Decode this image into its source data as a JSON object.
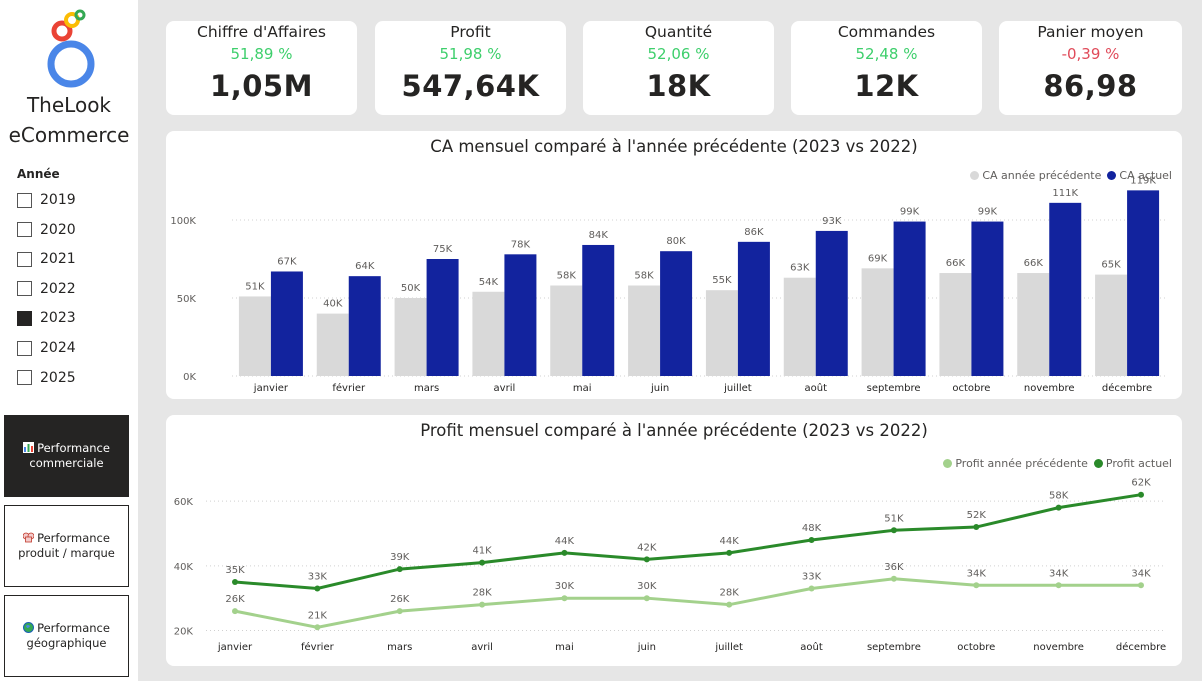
{
  "sidebar": {
    "brand_line1": "TheLook",
    "brand_line2": "eCommerce",
    "year_filter_title": "Année",
    "years": [
      {
        "label": "2019",
        "checked": false
      },
      {
        "label": "2020",
        "checked": false
      },
      {
        "label": "2021",
        "checked": false
      },
      {
        "label": "2022",
        "checked": false
      },
      {
        "label": "2023",
        "checked": true
      },
      {
        "label": "2024",
        "checked": false
      },
      {
        "label": "2025",
        "checked": false
      }
    ],
    "nav": [
      {
        "line1": "Performance",
        "line2": "commerciale",
        "icon": "bar-chart-icon",
        "active": true
      },
      {
        "line1": "Performance",
        "line2": "produit / marque",
        "icon": "chef-hat-icon",
        "active": false
      },
      {
        "line1": "Performance",
        "line2": "géographique",
        "icon": "globe-icon",
        "active": false
      }
    ]
  },
  "kpis": [
    {
      "title": "Chiffre d'Affaires",
      "delta": "51,89 %",
      "value": "1,05M",
      "trend": "up"
    },
    {
      "title": "Profit",
      "delta": "51,98 %",
      "value": "547,64K",
      "trend": "up"
    },
    {
      "title": "Quantité",
      "delta": "52,06 %",
      "value": "18K",
      "trend": "up"
    },
    {
      "title": "Commandes",
      "delta": "52,48 %",
      "value": "12K",
      "trend": "up"
    },
    {
      "title": "Panier moyen",
      "delta": "-0,39 %",
      "value": "86,98",
      "trend": "down"
    }
  ],
  "colors": {
    "up": "#3ecf6c",
    "down": "#e04b5a",
    "prev_bar": "#d9d9d9",
    "curr_bar": "#12239e",
    "prev_line": "#a3d18c",
    "curr_line": "#2a8a2a"
  },
  "chart_data": [
    {
      "type": "bar",
      "title": "CA mensuel comparé à l'année précédente (2023 vs 2022)",
      "categories": [
        "janvier",
        "février",
        "mars",
        "avril",
        "mai",
        "juin",
        "juillet",
        "août",
        "septembre",
        "octobre",
        "novembre",
        "décembre"
      ],
      "series": [
        {
          "name": "CA année précédente",
          "values": [
            51,
            40,
            50,
            54,
            58,
            58,
            55,
            63,
            69,
            66,
            66,
            65
          ],
          "labels": [
            "51K",
            "40K",
            "50K",
            "54K",
            "58K",
            "58K",
            "55K",
            "63K",
            "69K",
            "66K",
            "66K",
            "65K"
          ]
        },
        {
          "name": "CA actuel",
          "values": [
            67,
            64,
            75,
            78,
            84,
            80,
            86,
            93,
            99,
            99,
            111,
            119
          ],
          "labels": [
            "67K",
            "64K",
            "75K",
            "78K",
            "84K",
            "80K",
            "86K",
            "93K",
            "99K",
            "99K",
            "111K",
            "119K"
          ]
        }
      ],
      "yticks": [
        "0K",
        "50K",
        "100K"
      ],
      "ytick_values": [
        0,
        50,
        100
      ],
      "ylim": [
        0,
        125
      ],
      "grid": true,
      "legend": "top-right"
    },
    {
      "type": "line",
      "title": "Profit mensuel comparé à l'année précédente (2023 vs 2022)",
      "categories": [
        "janvier",
        "février",
        "mars",
        "avril",
        "mai",
        "juin",
        "juillet",
        "août",
        "septembre",
        "octobre",
        "novembre",
        "décembre"
      ],
      "series": [
        {
          "name": "Profit année précédente",
          "values": [
            26,
            21,
            26,
            28,
            30,
            30,
            28,
            33,
            36,
            34,
            34,
            34
          ],
          "labels": [
            "26K",
            "21K",
            "26K",
            "28K",
            "30K",
            "30K",
            "28K",
            "33K",
            "36K",
            "34K",
            "34K",
            "34K"
          ]
        },
        {
          "name": "Profit actuel",
          "values": [
            35,
            33,
            39,
            41,
            44,
            42,
            44,
            48,
            51,
            52,
            58,
            62
          ],
          "labels": [
            "35K",
            "33K",
            "39K",
            "41K",
            "44K",
            "42K",
            "44K",
            "48K",
            "51K",
            "52K",
            "58K",
            "62K"
          ]
        }
      ],
      "yticks": [
        "20K",
        "40K",
        "60K"
      ],
      "ytick_values": [
        20,
        40,
        60
      ],
      "ylim": [
        18,
        65
      ],
      "grid": true,
      "legend": "top-right"
    }
  ]
}
